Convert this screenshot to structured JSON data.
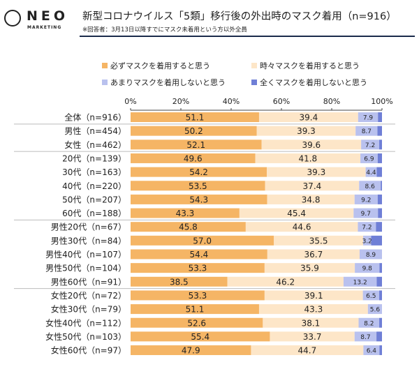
{
  "brand": {
    "logo_text": "NEO",
    "logo_sub": "MARKETING"
  },
  "header": {
    "title": "新型コロナウイルス「5類」移行後の外出時のマスク着用（n=916）",
    "subtitle": "※回答者：3月13日以降すでにマスク未着用という方以外全員"
  },
  "chart_data": {
    "type": "bar",
    "orientation": "horizontal",
    "stacked": true,
    "xlim": [
      0,
      100
    ],
    "x_ticks": [
      "0%",
      "20%",
      "40%",
      "60%",
      "80%",
      "100%"
    ],
    "legend_placement": "top",
    "categories": [
      "全体（n=916）",
      "男性（n=454）",
      "女性（n=462）",
      "20代（n=139）",
      "30代（n=163）",
      "40代（n=220）",
      "50代（n=207）",
      "60代（n=188）",
      "男性20代（n=67）",
      "男性30代（n=84）",
      "男性40代（n=107）",
      "男性50代（n=104）",
      "男性60代（n=91）",
      "女性20代（n=72）",
      "女性30代（n=79）",
      "女性40代（n=112）",
      "女性50代（n=103）",
      "女性60代（n=97）"
    ],
    "group_separators_after": [
      0,
      2,
      7,
      12
    ],
    "series": [
      {
        "name": "必ずマスクを着用すると思う",
        "color": "#f5b565",
        "labeled": true,
        "values": [
          51.1,
          50.2,
          52.1,
          49.6,
          54.2,
          53.5,
          54.3,
          43.3,
          45.8,
          57.0,
          54.4,
          53.3,
          38.5,
          53.3,
          51.1,
          52.6,
          55.4,
          47.9
        ]
      },
      {
        "name": "時々マスクを着用すると思う",
        "color": "#fde6c8",
        "labeled": true,
        "values": [
          39.4,
          39.3,
          39.6,
          41.8,
          39.3,
          37.4,
          34.8,
          45.4,
          44.6,
          35.5,
          36.7,
          35.9,
          46.2,
          39.1,
          43.3,
          38.1,
          33.7,
          44.7
        ]
      },
      {
        "name": "あまりマスクを着用しないと思う",
        "color": "#b9c1ee",
        "labeled": true,
        "values": [
          7.9,
          8.7,
          7.2,
          6.9,
          4.4,
          8.6,
          9.2,
          9.7,
          7.2,
          3.2,
          8.9,
          9.8,
          13.2,
          6.5,
          5.6,
          8.2,
          8.7,
          6.4
        ]
      },
      {
        "name": "全くマスクを着用しないと思う",
        "color": "#6f7fd6",
        "labeled": false,
        "values": [
          1.6,
          1.8,
          1.1,
          1.7,
          2.1,
          0.5,
          1.7,
          1.6,
          2.4,
          4.3,
          0.0,
          1.0,
          2.1,
          1.1,
          0.0,
          1.1,
          2.2,
          1.0
        ]
      }
    ]
  }
}
